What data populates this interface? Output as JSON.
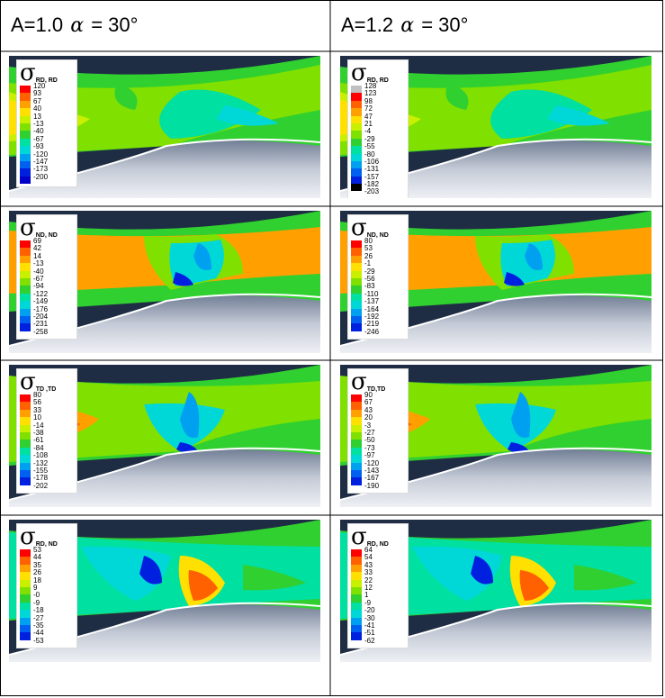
{
  "columns": [
    {
      "prefix": "A=1.0",
      "alpha": "α",
      "suffix": "= 30°"
    },
    {
      "prefix": "A=1.2",
      "alpha": "α",
      "suffix": "= 30°"
    }
  ],
  "rows": [
    {
      "symbol": "σ",
      "cells": [
        {
          "subscript": "RD, RD",
          "ticks": [
            "120",
            "93",
            "67",
            "40",
            "13",
            "-13",
            "-40",
            "-67",
            "-93",
            "-120",
            "-147",
            "-173",
            "-200"
          ],
          "colors": [
            "#ff0000",
            "#ff6000",
            "#ffa000",
            "#ffe000",
            "#c8f000",
            "#80e000",
            "#30d030",
            "#00e0a0",
            "#00d8d8",
            "#00a0f0",
            "#0060f0",
            "#0020e0",
            "#0000c8"
          ]
        },
        {
          "subscript": "RD, RD",
          "ticks": [
            "128",
            "123",
            "98",
            "72",
            "47",
            "21",
            "-4",
            "-29",
            "-55",
            "-80",
            "-106",
            "-131",
            "-157",
            "-182",
            "-203"
          ],
          "colors": [
            "#c0c0c0",
            "#ff0000",
            "#ff6000",
            "#ffa000",
            "#ffe000",
            "#c8f000",
            "#80e000",
            "#30d030",
            "#00e0a0",
            "#00d8d8",
            "#00a0f0",
            "#0060f0",
            "#0020e0",
            "#000000"
          ]
        }
      ]
    },
    {
      "symbol": "σ",
      "cells": [
        {
          "subscript": "ND, ND",
          "ticks": [
            "69",
            "42",
            "14",
            "-13",
            "-40",
            "-67",
            "-94",
            "-122",
            "-149",
            "-176",
            "-204",
            "-231",
            "-258"
          ],
          "colors": [
            "#ff0000",
            "#ff6000",
            "#ffa000",
            "#ffe000",
            "#c8f000",
            "#80e000",
            "#30d030",
            "#00e0a0",
            "#00d8d8",
            "#00a0f0",
            "#0060f0",
            "#0020e0"
          ]
        },
        {
          "subscript": "ND, ND",
          "ticks": [
            "80",
            "53",
            "26",
            "-1",
            "-29",
            "-56",
            "-83",
            "-110",
            "-137",
            "-164",
            "-192",
            "-219",
            "-246"
          ],
          "colors": [
            "#ff0000",
            "#ff6000",
            "#ffa000",
            "#ffe000",
            "#c8f000",
            "#80e000",
            "#30d030",
            "#00e0a0",
            "#00d8d8",
            "#00a0f0",
            "#0060f0",
            "#0020e0"
          ]
        }
      ]
    },
    {
      "symbol": "σ",
      "cells": [
        {
          "subscript": "TD ,TD",
          "ticks": [
            "80",
            "56",
            "33",
            "10",
            "-14",
            "-38",
            "-61",
            "-84",
            "-108",
            "-132",
            "-155",
            "-178",
            "-202"
          ],
          "colors": [
            "#ff0000",
            "#ff6000",
            "#ffa000",
            "#ffe000",
            "#c8f000",
            "#80e000",
            "#30d030",
            "#00e0a0",
            "#00d8d8",
            "#00a0f0",
            "#0060f0",
            "#0020e0"
          ]
        },
        {
          "subscript": "TD,TD",
          "ticks": [
            "90",
            "67",
            "43",
            "20",
            "-3",
            "-27",
            "-50",
            "-73",
            "-97",
            "-120",
            "-143",
            "-167",
            "-190"
          ],
          "colors": [
            "#ff0000",
            "#ff6000",
            "#ffa000",
            "#ffe000",
            "#c8f000",
            "#80e000",
            "#30d030",
            "#00e0a0",
            "#00d8d8",
            "#00a0f0",
            "#0060f0",
            "#0020e0"
          ]
        }
      ]
    },
    {
      "symbol": "σ",
      "cells": [
        {
          "subscript": "RD, ND",
          "ticks": [
            "53",
            "44",
            "35",
            "26",
            "18",
            "9",
            "-0",
            "-9",
            "-18",
            "-27",
            "-35",
            "-44",
            "-53"
          ],
          "colors": [
            "#ff0000",
            "#ff6000",
            "#ffa000",
            "#ffe000",
            "#c8f000",
            "#80e000",
            "#30d030",
            "#00e0a0",
            "#00d8d8",
            "#00a0f0",
            "#0060f0",
            "#0020e0"
          ]
        },
        {
          "subscript": "RD, ND",
          "ticks": [
            "64",
            "54",
            "43",
            "33",
            "22",
            "12",
            "1",
            "-9",
            "-20",
            "-30",
            "-41",
            "-51",
            "-62"
          ],
          "colors": [
            "#ff0000",
            "#ff6000",
            "#ffa000",
            "#ffe000",
            "#c8f000",
            "#80e000",
            "#30d030",
            "#00e0a0",
            "#00d8d8",
            "#00a0f0",
            "#0060f0",
            "#0020e0"
          ]
        }
      ]
    }
  ],
  "colors": {
    "die_dark": "#1f2d44",
    "grid_line": "#000000"
  }
}
